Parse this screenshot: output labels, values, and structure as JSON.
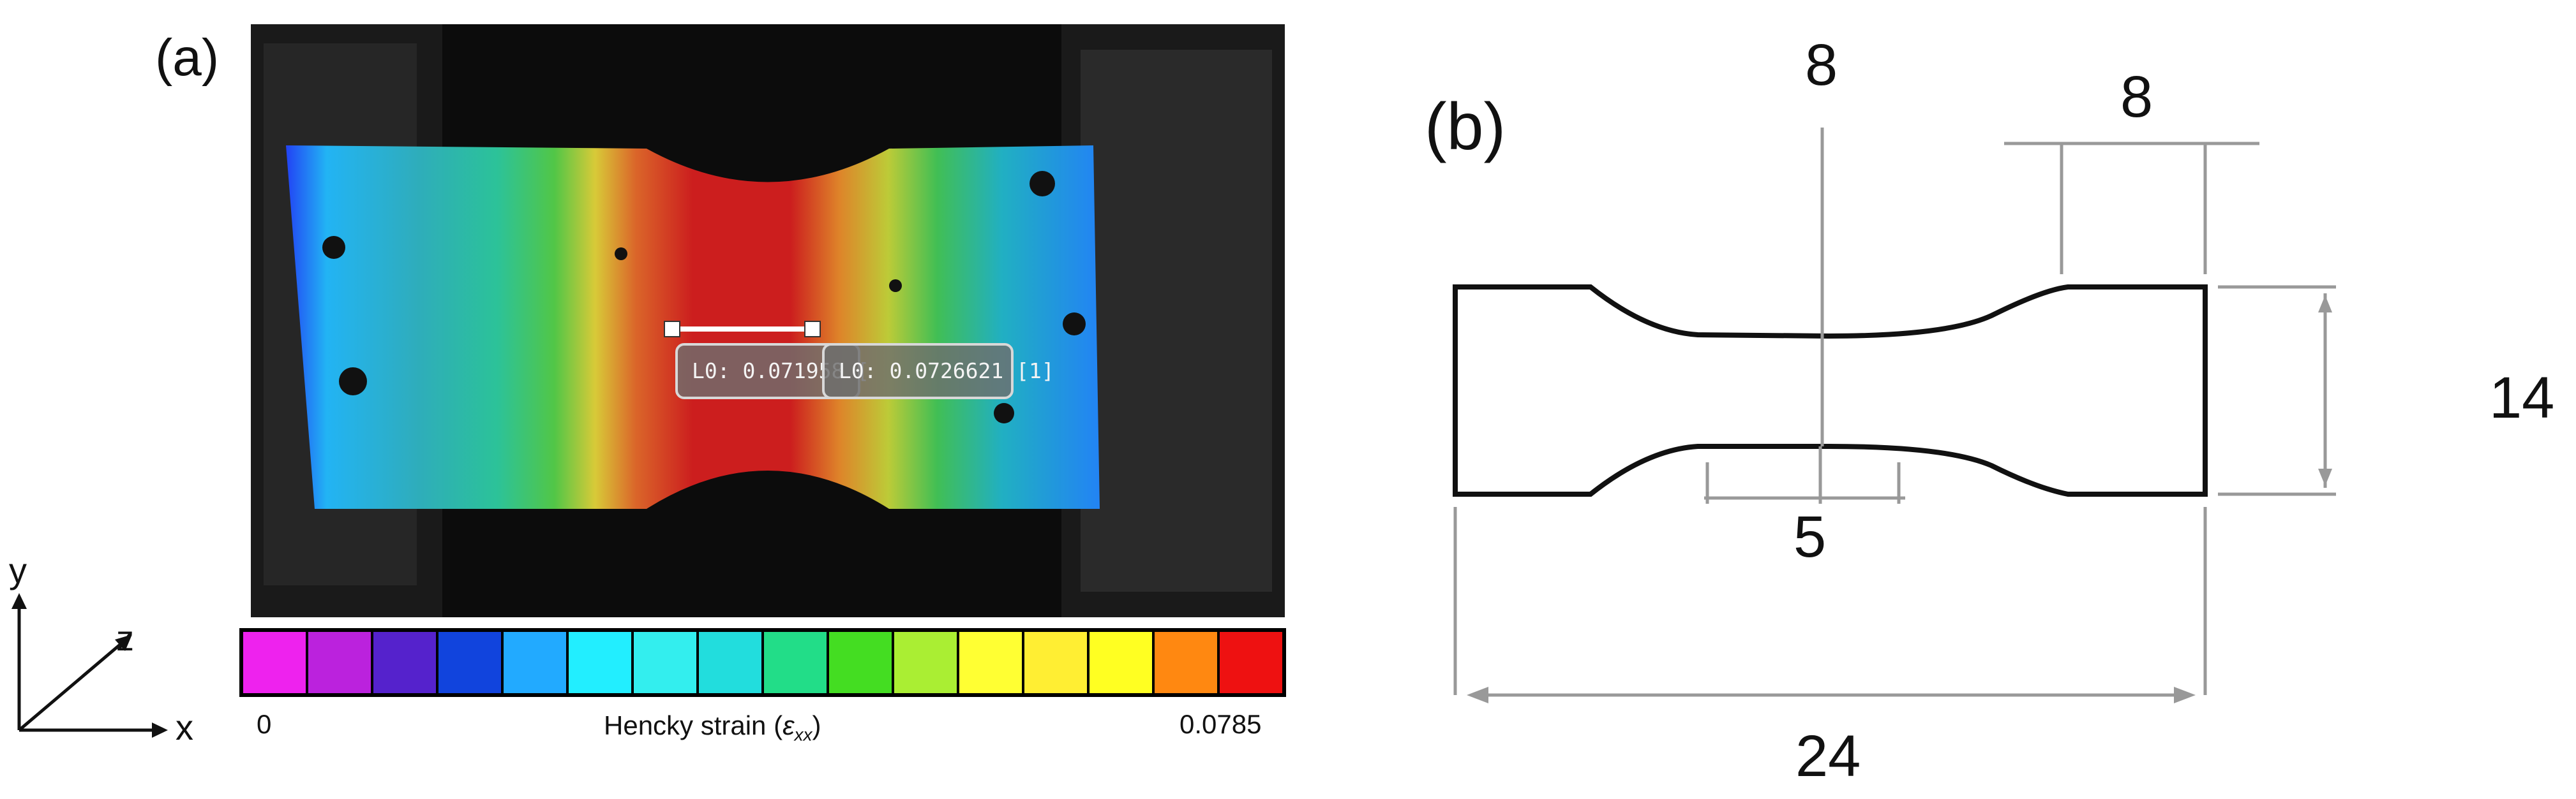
{
  "panels": {
    "a": "(a)",
    "b": "(b)"
  },
  "tooltips": [
    {
      "text": "L0: 0.071958 ["
    },
    {
      "text": "L0: 0.0726621 [1]"
    }
  ],
  "colorbar": {
    "min_label": "0",
    "max_label": "0.0785",
    "label": "Hencky strain (",
    "symbol": "ε",
    "subscript": "xx",
    "label_end": ")",
    "colors": [
      "#ee22ee",
      "#bb22dd",
      "#5522cc",
      "#1144dd",
      "#22aaff",
      "#22eeff",
      "#33eeee",
      "#22dddd",
      "#22dd88",
      "#44dd22",
      "#aaee33",
      "#ffff33",
      "#ffee33",
      "#ffff22",
      "#ff8811",
      "#ee1111"
    ]
  },
  "axes": {
    "x": "x",
    "y": "y",
    "z": "z"
  },
  "dimensions": {
    "top_left": "8",
    "top_right": "8",
    "height": "14",
    "gauge_width": "5",
    "length": "24"
  }
}
